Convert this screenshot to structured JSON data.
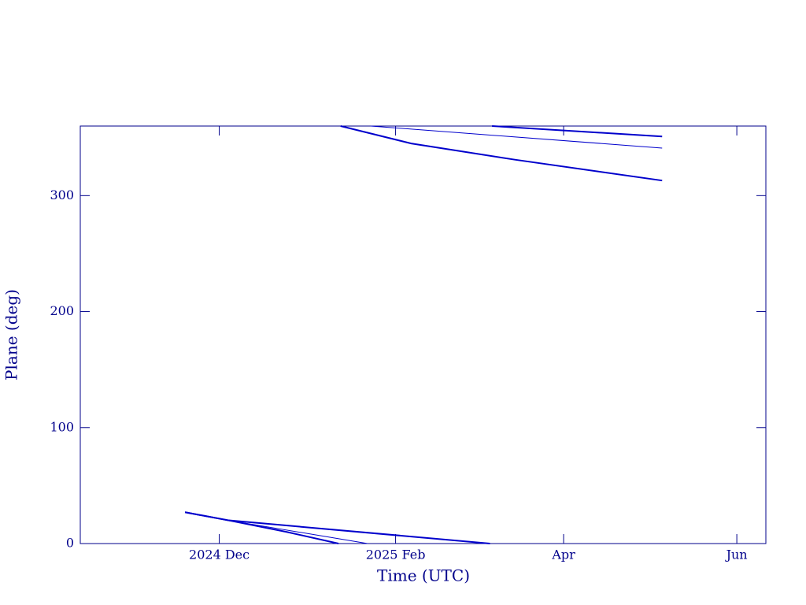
{
  "chart_data": {
    "type": "line",
    "xlabel": "Time (UTC)",
    "ylabel": "Plane (deg)",
    "xlim": [
      2024.781,
      2025.442
    ],
    "ylim": [
      0,
      360
    ],
    "xticks": [
      {
        "value": 2024.915,
        "label": "2024 Dec"
      },
      {
        "value": 2025.085,
        "label": "2025 Feb"
      },
      {
        "value": 2025.247,
        "label": "Apr"
      },
      {
        "value": 2025.414,
        "label": "Jun"
      }
    ],
    "yticks": [
      0,
      100,
      200,
      300
    ],
    "series": [
      {
        "color": "#0000cc",
        "line_width": 2,
        "x": [
          2024.882,
          2024.924,
          2024.98,
          2025.03,
          2025.031,
          2025.032,
          2025.1,
          2025.2,
          2025.342
        ],
        "values": [
          27,
          20,
          10,
          0,
          null,
          360,
          345,
          331,
          313
        ]
      },
      {
        "color": "#0000cc",
        "line_width": 1,
        "x": [
          2024.882,
          2024.924,
          2025.058,
          2025.059,
          2025.061,
          2025.342
        ],
        "values": [
          27,
          20,
          0,
          null,
          360,
          341
        ]
      },
      {
        "color": "#0000cc",
        "line_width": 2,
        "x": [
          2024.882,
          2024.924,
          2025.176,
          2025.177,
          2025.178,
          2025.342
        ],
        "values": [
          27,
          20,
          0,
          null,
          360,
          351
        ]
      }
    ]
  }
}
